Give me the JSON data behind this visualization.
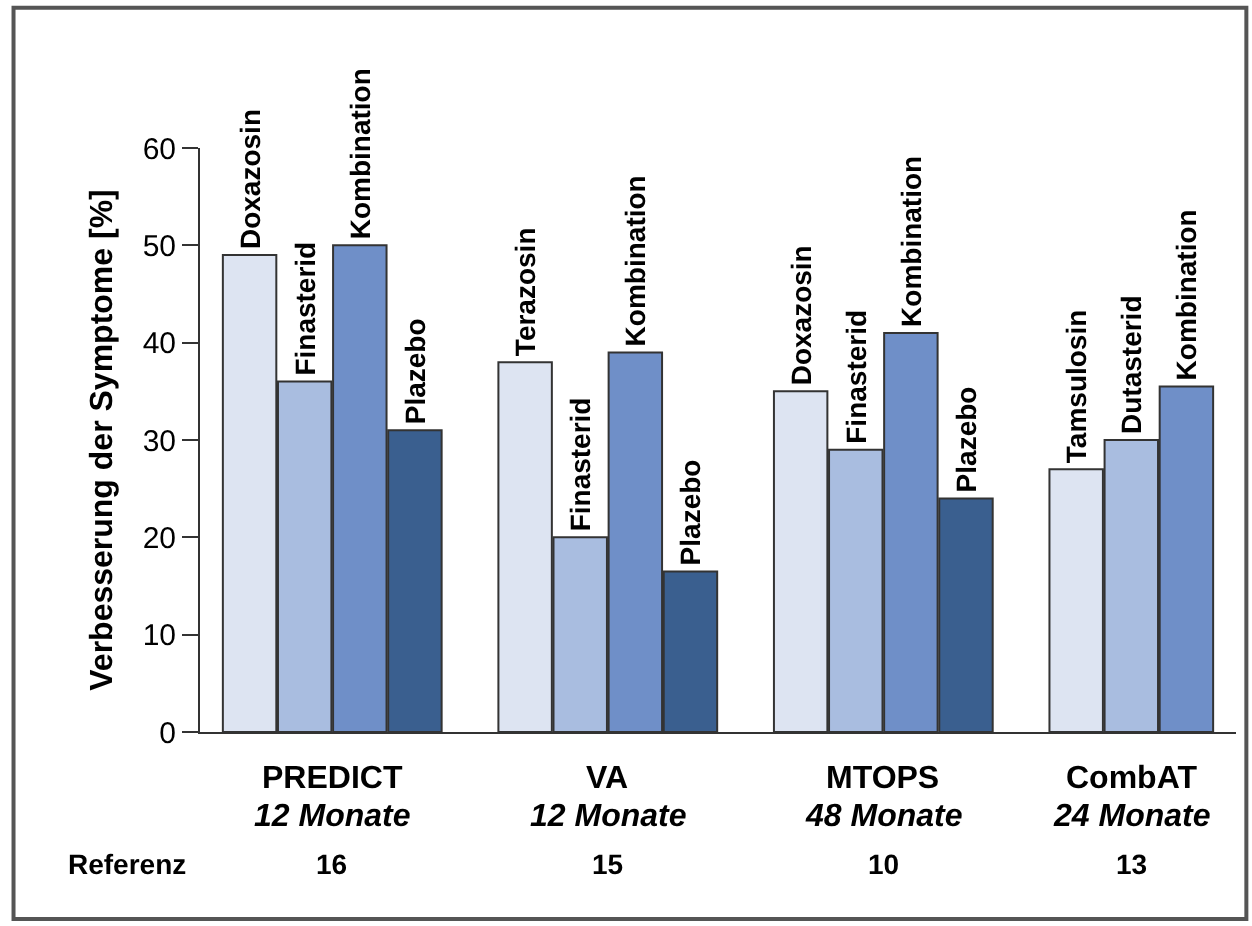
{
  "chart_data": {
    "type": "bar",
    "ylabel": "Verbesserung der Symptome [%]",
    "categories": [
      "Doxazosin",
      "Finasterid",
      "Kombination",
      "Plazebo",
      null,
      "Terazosin",
      "Finasterid",
      "Kombination",
      "Plazebo",
      null,
      "Doxazosin",
      "Finasterid",
      "Kombination",
      "Plazebo",
      null,
      "Tamsulosin",
      "Dutasterid",
      "Kombination"
    ],
    "values": [
      49,
      36,
      50,
      31,
      null,
      38,
      20,
      39,
      16.5,
      null,
      35,
      29,
      41,
      24,
      null,
      27,
      30,
      35.5
    ],
    "colors": [
      "#dde4f2",
      "#a9bde0",
      "#6f8fc8",
      "#3a5f8f",
      null,
      "#dde4f2",
      "#a9bde0",
      "#6f8fc8",
      "#3a5f8f",
      null,
      "#dde4f2",
      "#a9bde0",
      "#6f8fc8",
      "#3a5f8f",
      null,
      "#dde4f2",
      "#a9bde0",
      "#6f8fc8"
    ],
    "ylim": [
      0,
      60
    ],
    "yticks": [
      0,
      10,
      20,
      30,
      40,
      50,
      60
    ],
    "tick_labels": "y",
    "annotations": [
      "Referenz",
      "PREDICT",
      "12 Monate",
      "16",
      "VA",
      "12 Monate",
      "15",
      "MTOPS",
      "48 Monate",
      "10",
      "CombAT",
      "24 Monate",
      "13"
    ]
  }
}
